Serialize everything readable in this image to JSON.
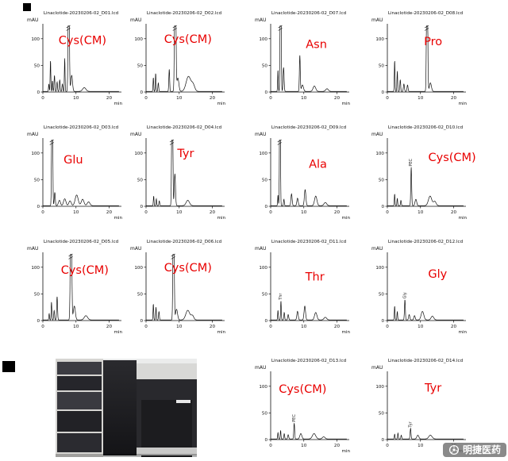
{
  "watermark": {
    "text": "明捷医药",
    "icon": "aperture-icon"
  },
  "peaks_format": "[retention_time_min, height_mAU, sigma_min]",
  "chart_data": [
    {
      "id": "D01",
      "type": "line",
      "title": "Linaclotide-20230206-02_D01.lcd",
      "ylabel": "mAU",
      "xlabel": "min",
      "xlim": [
        0,
        23
      ],
      "ylim": [
        0,
        125
      ],
      "xticks": [
        0,
        10,
        20
      ],
      "yticks": [
        0,
        50,
        100
      ],
      "annotation": "Cys(CM)",
      "annotation_color": "#e80000",
      "annotation_pos": [
        0.52,
        0.28
      ],
      "grid": {
        "row": 0,
        "col": 0
      },
      "peaks": [
        [
          1.8,
          14,
          0.1
        ],
        [
          2.3,
          58,
          0.1
        ],
        [
          2.9,
          20,
          0.1
        ],
        [
          3.5,
          30,
          0.12
        ],
        [
          4.3,
          18,
          0.12
        ],
        [
          5.1,
          22,
          0.12
        ],
        [
          5.9,
          14,
          0.12
        ],
        [
          6.6,
          62,
          0.1
        ],
        [
          7.8,
          320,
          0.16
        ],
        [
          8.7,
          30,
          0.25
        ],
        [
          12.5,
          7,
          0.5
        ]
      ]
    },
    {
      "id": "D02",
      "type": "line",
      "title": "Linaclotide-20230206-02_D02.lcd",
      "ylabel": "mAU",
      "xlabel": "min",
      "xlim": [
        0,
        23
      ],
      "ylim": [
        0,
        125
      ],
      "xticks": [
        0,
        10,
        20
      ],
      "yticks": [
        0,
        50,
        100
      ],
      "annotation": "Cys(CM)",
      "annotation_color": "#e80000",
      "annotation_pos": [
        0.55,
        0.26
      ],
      "grid": {
        "row": 0,
        "col": 1
      },
      "peaks": [
        [
          2.2,
          26,
          0.1
        ],
        [
          2.9,
          34,
          0.1
        ],
        [
          3.7,
          16,
          0.12
        ],
        [
          7.0,
          42,
          0.12
        ],
        [
          8.8,
          320,
          0.18
        ],
        [
          9.6,
          25,
          0.3
        ],
        [
          12.8,
          28,
          0.7
        ],
        [
          14.2,
          12,
          0.5
        ]
      ]
    },
    {
      "id": "D07",
      "type": "line",
      "title": "Linaclotide-20230206-02_D07.lcd",
      "ylabel": "mAU",
      "xlabel": "min",
      "xlim": [
        0,
        23
      ],
      "ylim": [
        0,
        125
      ],
      "xticks": [
        0,
        10,
        20
      ],
      "yticks": [
        0,
        50,
        100
      ],
      "annotation": "Asn",
      "annotation_color": "#e80000",
      "annotation_pos": [
        0.6,
        0.34
      ],
      "grid": {
        "row": 0,
        "col": 2
      },
      "peaks": [
        [
          2.2,
          40,
          0.1
        ],
        [
          3.0,
          320,
          0.14
        ],
        [
          3.9,
          45,
          0.15
        ],
        [
          8.8,
          68,
          0.13
        ],
        [
          9.6,
          12,
          0.3
        ],
        [
          13.2,
          10,
          0.4
        ],
        [
          17.0,
          5,
          0.4
        ]
      ]
    },
    {
      "id": "D08",
      "type": "line",
      "title": "Linaclotide-20230206-02_D08.lcd",
      "ylabel": "mAU",
      "xlabel": "min",
      "xlim": [
        0,
        23
      ],
      "ylim": [
        0,
        125
      ],
      "xticks": [
        0,
        10,
        20
      ],
      "yticks": [
        0,
        50,
        100
      ],
      "annotation": "Pro",
      "annotation_color": "#e80000",
      "annotation_pos": [
        0.6,
        0.3
      ],
      "grid": {
        "row": 0,
        "col": 3
      },
      "peaks": [
        [
          2.2,
          58,
          0.1
        ],
        [
          3.0,
          38,
          0.1
        ],
        [
          3.9,
          22,
          0.12
        ],
        [
          5.0,
          14,
          0.15
        ],
        [
          6.1,
          12,
          0.15
        ],
        [
          12.0,
          320,
          0.16
        ],
        [
          13.0,
          16,
          0.3
        ]
      ]
    },
    {
      "id": "D03",
      "type": "line",
      "title": "Linaclotide-20230206-02_D03.lcd",
      "ylabel": "mAU",
      "xlabel": "min",
      "xlim": [
        0,
        23
      ],
      "ylim": [
        0,
        125
      ],
      "xticks": [
        0,
        10,
        20
      ],
      "yticks": [
        0,
        50,
        100
      ],
      "annotation": "Glu",
      "annotation_color": "#e80000",
      "annotation_pos": [
        0.4,
        0.36
      ],
      "grid": {
        "row": 1,
        "col": 0
      },
      "peaks": [
        [
          2.8,
          320,
          0.14
        ],
        [
          3.6,
          25,
          0.15
        ],
        [
          5.0,
          10,
          0.3
        ],
        [
          6.6,
          13,
          0.35
        ],
        [
          8.2,
          9,
          0.35
        ],
        [
          10.2,
          20,
          0.45
        ],
        [
          12.0,
          12,
          0.4
        ],
        [
          13.8,
          7,
          0.4
        ]
      ]
    },
    {
      "id": "D04",
      "type": "line",
      "title": "Linaclotide-20230206-02_D04.lcd",
      "ylabel": "mAU",
      "xlabel": "min",
      "xlim": [
        0,
        23
      ],
      "ylim": [
        0,
        125
      ],
      "xticks": [
        0,
        10,
        20
      ],
      "yticks": [
        0,
        50,
        100
      ],
      "annotation": "Tyr",
      "annotation_color": "#e80000",
      "annotation_pos": [
        0.52,
        0.26
      ],
      "grid": {
        "row": 1,
        "col": 1
      },
      "peaks": [
        [
          2.3,
          18,
          0.1
        ],
        [
          3.1,
          13,
          0.1
        ],
        [
          4.0,
          9,
          0.12
        ],
        [
          7.9,
          320,
          0.15
        ],
        [
          8.7,
          60,
          0.18
        ],
        [
          12.6,
          10,
          0.5
        ]
      ]
    },
    {
      "id": "D09",
      "type": "line",
      "title": "Linaclotide-20230206-02_D09.lcd",
      "ylabel": "mAU",
      "xlabel": "min",
      "xlim": [
        0,
        23
      ],
      "ylim": [
        0,
        125
      ],
      "xticks": [
        0,
        10,
        20
      ],
      "yticks": [
        0,
        50,
        100
      ],
      "annotation": "Ala",
      "annotation_color": "#e80000",
      "annotation_pos": [
        0.62,
        0.42
      ],
      "grid": {
        "row": 1,
        "col": 2
      },
      "peaks": [
        [
          2.2,
          20,
          0.1
        ],
        [
          2.8,
          320,
          0.12
        ],
        [
          4.0,
          12,
          0.12
        ],
        [
          6.3,
          22,
          0.18
        ],
        [
          8.1,
          14,
          0.2
        ],
        [
          10.4,
          30,
          0.22
        ],
        [
          13.6,
          18,
          0.35
        ],
        [
          16.5,
          6,
          0.4
        ]
      ]
    },
    {
      "id": "D10",
      "type": "line",
      "title": "Linaclotide-20230206-02_D10.lcd",
      "ylabel": "mAU",
      "xlabel": "min",
      "xlim": [
        0,
        23
      ],
      "ylim": [
        0,
        125
      ],
      "xticks": [
        0,
        10,
        20
      ],
      "yticks": [
        0,
        50,
        100
      ],
      "annotation": "Cys(CM)",
      "annotation_color": "#e80000",
      "annotation_pos": [
        0.85,
        0.32
      ],
      "grid": {
        "row": 1,
        "col": 3
      },
      "peak_label": {
        "text": "PEC",
        "t": 7.2,
        "h": 72
      },
      "peaks": [
        [
          2.2,
          22,
          0.1
        ],
        [
          3.0,
          14,
          0.1
        ],
        [
          4.1,
          10,
          0.12
        ],
        [
          7.2,
          72,
          0.13
        ],
        [
          8.6,
          12,
          0.25
        ],
        [
          12.9,
          18,
          0.5
        ],
        [
          14.3,
          8,
          0.4
        ]
      ]
    },
    {
      "id": "D05",
      "type": "line",
      "title": "Linaclotide-20230206-02_D05.lcd",
      "ylabel": "mAU",
      "xlabel": "min",
      "xlim": [
        0,
        23
      ],
      "ylim": [
        0,
        125
      ],
      "xticks": [
        0,
        10,
        20
      ],
      "yticks": [
        0,
        50,
        100
      ],
      "annotation": "Cys(CM)",
      "annotation_color": "#e80000",
      "annotation_pos": [
        0.55,
        0.3
      ],
      "grid": {
        "row": 2,
        "col": 0
      },
      "peaks": [
        [
          1.9,
          12,
          0.1
        ],
        [
          2.6,
          34,
          0.1
        ],
        [
          3.4,
          18,
          0.12
        ],
        [
          4.3,
          44,
          0.13
        ],
        [
          8.5,
          320,
          0.18
        ],
        [
          9.5,
          26,
          0.3
        ],
        [
          13.0,
          8,
          0.5
        ]
      ]
    },
    {
      "id": "D06",
      "type": "line",
      "title": "Linaclotide-20230206-02_D06.lcd",
      "ylabel": "mAU",
      "xlabel": "min",
      "xlim": [
        0,
        23
      ],
      "ylim": [
        0,
        125
      ],
      "xticks": [
        0,
        10,
        20
      ],
      "yticks": [
        0,
        50,
        100
      ],
      "annotation": "Cys(CM)",
      "annotation_color": "#e80000",
      "annotation_pos": [
        0.55,
        0.26
      ],
      "grid": {
        "row": 2,
        "col": 1
      },
      "peaks": [
        [
          2.2,
          30,
          0.1
        ],
        [
          3.0,
          24,
          0.1
        ],
        [
          3.9,
          16,
          0.12
        ],
        [
          8.3,
          320,
          0.16
        ],
        [
          9.2,
          20,
          0.3
        ],
        [
          12.6,
          18,
          0.6
        ],
        [
          14.0,
          8,
          0.4
        ]
      ]
    },
    {
      "id": "D11",
      "type": "line",
      "title": "Linaclotide-20230206-02_D11.lcd",
      "ylabel": "mAU",
      "xlabel": "min",
      "xlim": [
        0,
        23
      ],
      "ylim": [
        0,
        125
      ],
      "xticks": [
        0,
        10,
        20
      ],
      "yticks": [
        0,
        50,
        100
      ],
      "annotation": "Thr",
      "annotation_color": "#e80000",
      "annotation_pos": [
        0.58,
        0.4
      ],
      "grid": {
        "row": 2,
        "col": 2
      },
      "peak_label": {
        "text": "Thr",
        "t": 3.1,
        "h": 36
      },
      "peaks": [
        [
          2.2,
          18,
          0.1
        ],
        [
          3.1,
          36,
          0.1
        ],
        [
          4.1,
          14,
          0.12
        ],
        [
          5.3,
          10,
          0.15
        ],
        [
          8.1,
          16,
          0.2
        ],
        [
          10.3,
          26,
          0.22
        ],
        [
          13.6,
          14,
          0.35
        ],
        [
          16.5,
          5,
          0.4
        ]
      ]
    },
    {
      "id": "D12",
      "type": "line",
      "title": "Linaclotide-20230206-02_D12.lcd",
      "ylabel": "mAU",
      "xlabel": "min",
      "xlim": [
        0,
        23
      ],
      "ylim": [
        0,
        125
      ],
      "xticks": [
        0,
        10,
        20
      ],
      "yticks": [
        0,
        50,
        100
      ],
      "annotation": "Gly",
      "annotation_color": "#e80000",
      "annotation_pos": [
        0.66,
        0.36
      ],
      "grid": {
        "row": 2,
        "col": 3
      },
      "peak_label": {
        "text": "Gly",
        "t": 5.3,
        "h": 38
      },
      "peaks": [
        [
          2.2,
          26,
          0.1
        ],
        [
          3.0,
          16,
          0.1
        ],
        [
          5.3,
          38,
          0.13
        ],
        [
          6.6,
          10,
          0.18
        ],
        [
          8.2,
          8,
          0.2
        ],
        [
          10.6,
          16,
          0.4
        ],
        [
          13.6,
          7,
          0.4
        ]
      ]
    },
    {
      "id": "D13",
      "type": "line",
      "title": "Linaclotide-20230206-02_D13.lcd",
      "ylabel": "mAU",
      "xlabel": "min",
      "xlim": [
        0,
        23
      ],
      "ylim": [
        0,
        125
      ],
      "xticks": [
        0,
        10,
        20
      ],
      "yticks": [
        0,
        50,
        100
      ],
      "annotation": "Cys(CM)",
      "annotation_color": "#e80000",
      "annotation_pos": [
        0.42,
        0.3
      ],
      "grid": {
        "row": 3,
        "col": 2
      },
      "peak_label": {
        "text": "PEC",
        "t": 7.1,
        "h": 30
      },
      "peaks": [
        [
          2.2,
          12,
          0.1
        ],
        [
          3.0,
          16,
          0.1
        ],
        [
          4.1,
          10,
          0.12
        ],
        [
          5.3,
          8,
          0.15
        ],
        [
          7.1,
          30,
          0.13
        ],
        [
          9.1,
          10,
          0.3
        ],
        [
          13.1,
          10,
          0.5
        ],
        [
          16.0,
          4,
          0.4
        ]
      ]
    },
    {
      "id": "D14",
      "type": "line",
      "title": "Linaclotide-20230206-02_D14.lcd",
      "ylabel": "mAU",
      "xlabel": "min",
      "xlim": [
        0,
        23
      ],
      "ylim": [
        0,
        125
      ],
      "xticks": [
        0,
        10,
        20
      ],
      "yticks": [
        0,
        50,
        100
      ],
      "annotation": "Tyr",
      "annotation_color": "#e80000",
      "annotation_pos": [
        0.6,
        0.28
      ],
      "grid": {
        "row": 3,
        "col": 3
      },
      "peak_label": {
        "text": "Tyr",
        "t": 7.0,
        "h": 20
      },
      "peaks": [
        [
          2.2,
          9,
          0.1
        ],
        [
          3.2,
          11,
          0.1
        ],
        [
          4.2,
          7,
          0.12
        ],
        [
          7.0,
          20,
          0.13
        ],
        [
          9.2,
          7,
          0.3
        ],
        [
          13.0,
          7,
          0.5
        ]
      ]
    }
  ]
}
